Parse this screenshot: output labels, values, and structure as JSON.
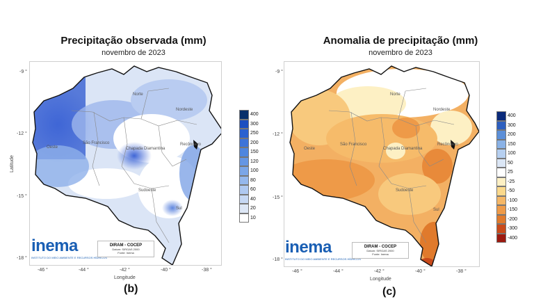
{
  "panel_b": {
    "title": "Precipitação observada (mm)",
    "subtitle": "novembro de 2023",
    "letter": "(b)",
    "legend": {
      "values": [
        "400",
        "300",
        "250",
        "200",
        "150",
        "120",
        "100",
        "80",
        "60",
        "40",
        "20",
        "10"
      ],
      "colors": [
        "#08306b",
        "#1c4fc0",
        "#2b62d0",
        "#3d74d9",
        "#4f86df",
        "#6596e4",
        "#7ba6e8",
        "#95b8ed",
        "#afc9f1",
        "#c6d8f4",
        "#dde7f6",
        "#ffffff"
      ]
    }
  },
  "panel_c": {
    "title": "Anomalia de precipitação (mm)",
    "subtitle": "novembro de 2023",
    "letter": "(c)",
    "legend": {
      "values": [
        "400",
        "300",
        "200",
        "150",
        "100",
        "50",
        "25",
        "-25",
        "-50",
        "-100",
        "-150",
        "-200",
        "-300",
        "-400"
      ],
      "colors": [
        "#0a2a7a",
        "#2d5fbf",
        "#5c8fd8",
        "#8ab2e6",
        "#b6cff0",
        "#dbe6f5",
        "#ffffff",
        "#fdf0c4",
        "#fbd98c",
        "#f5b766",
        "#ee9a48",
        "#e07a2c",
        "#c94a1a",
        "#9c1a10"
      ]
    }
  },
  "map": {
    "lat_ticks": [
      "-9 °",
      "-12 °",
      "-15 °",
      "-18 °"
    ],
    "lon_ticks": [
      "-46 °",
      "-44 °",
      "-42 °",
      "-40 °",
      "-38 °"
    ],
    "xlabel": "Longitude",
    "ylabel": "Latitude",
    "regions": [
      "Norte",
      "Nordeste",
      "Oeste",
      "São Francisco",
      "Chapada Diamantina",
      "Recôncavo",
      "Sudoeste",
      "Sul"
    ]
  },
  "logo": {
    "name": "inema",
    "tagline": "INSTITUTO DO MEIO AMBIENTE E RECURSOS HÍDRICOS"
  },
  "info": {
    "title": "DIRAM - COCEP",
    "datum": "Datum: SIRGAS 2000",
    "source": "Fonte: Inema"
  }
}
